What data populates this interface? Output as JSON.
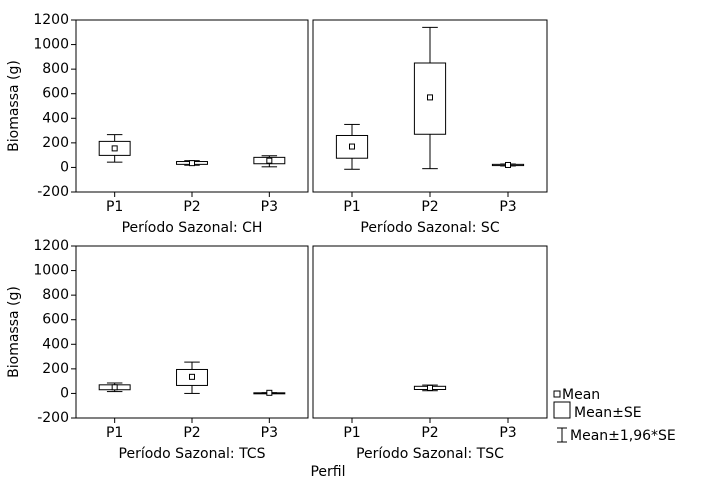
{
  "xlabel": "Perfil",
  "legend": [
    "Mean",
    "Mean±SE",
    "Mean±1,96*SE"
  ],
  "chart_data": [
    {
      "type": "box",
      "ylabel": "Biomassa (g)",
      "xlabel": "Período Sazonal: CH",
      "categories": [
        "P1",
        "P2",
        "P3"
      ],
      "mean": [
        155,
        35,
        55
      ],
      "se_lower": [
        98,
        25,
        30
      ],
      "se_upper": [
        212,
        48,
        82
      ],
      "ci_lower": [
        43,
        18,
        5
      ],
      "ci_upper": [
        267,
        55,
        95
      ],
      "ylim": [
        -200,
        1200
      ],
      "yticks": [
        -200,
        0,
        200,
        400,
        600,
        800,
        1000,
        1200
      ]
    },
    {
      "type": "box",
      "xlabel": "Período Sazonal: SC",
      "categories": [
        "P1",
        "P2",
        "P3"
      ],
      "mean": [
        170,
        570,
        20
      ],
      "se_lower": [
        75,
        270,
        15
      ],
      "se_upper": [
        260,
        850,
        25
      ],
      "ci_lower": [
        -15,
        -10,
        12
      ],
      "ci_upper": [
        350,
        1140,
        28
      ],
      "ylim": [
        -200,
        1200
      ]
    },
    {
      "type": "box",
      "ylabel": "Biomassa (g)",
      "xlabel": "Período Sazonal: TCS",
      "categories": [
        "P1",
        "P2",
        "P3"
      ],
      "mean": [
        50,
        135,
        5
      ],
      "se_lower": [
        30,
        65,
        5
      ],
      "se_upper": [
        70,
        195,
        5
      ],
      "ci_lower": [
        15,
        0,
        5
      ],
      "ci_upper": [
        85,
        255,
        5
      ],
      "ylim": [
        -200,
        1200
      ],
      "yticks": [
        -200,
        0,
        200,
        400,
        600,
        800,
        1000,
        1200
      ]
    },
    {
      "type": "box",
      "xlabel": "Período Sazonal: TSC",
      "categories": [
        "P1",
        "P2",
        "P3"
      ],
      "mean": [
        null,
        45,
        null
      ],
      "se_lower": [
        null,
        32,
        null
      ],
      "se_upper": [
        null,
        58,
        null
      ],
      "ci_lower": [
        null,
        22,
        null
      ],
      "ci_upper": [
        null,
        68,
        null
      ],
      "ylim": [
        -200,
        1200
      ]
    }
  ]
}
